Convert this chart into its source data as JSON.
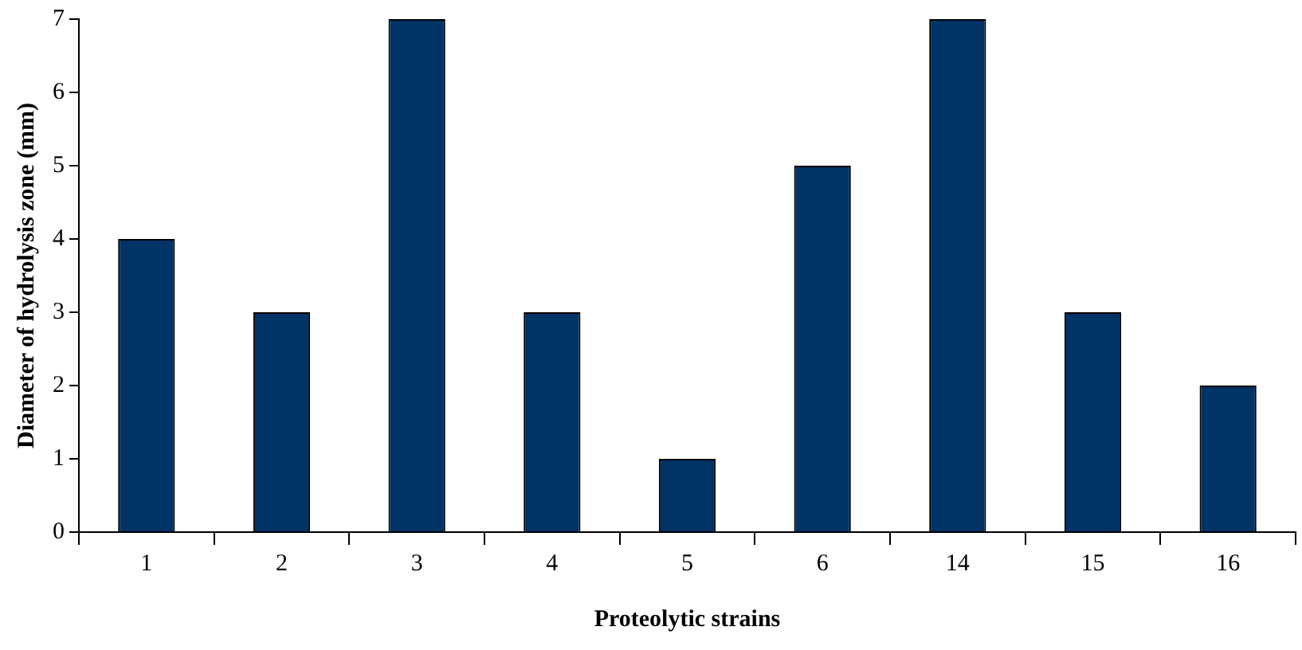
{
  "chart_data": {
    "type": "bar",
    "xlabel": "Proteolytic strains",
    "ylabel": "Diameter of hydrolysis zone (mm)",
    "categories": [
      "1",
      "2",
      "3",
      "4",
      "5",
      "6",
      "14",
      "15",
      "16"
    ],
    "values": [
      4,
      3,
      7,
      3,
      1,
      5,
      7,
      3,
      2
    ],
    "color": "#003366",
    "ylim": [
      0,
      7
    ],
    "yticks": [
      0,
      1,
      2,
      3,
      4,
      5,
      6,
      7
    ],
    "grid": false,
    "legend": false
  }
}
